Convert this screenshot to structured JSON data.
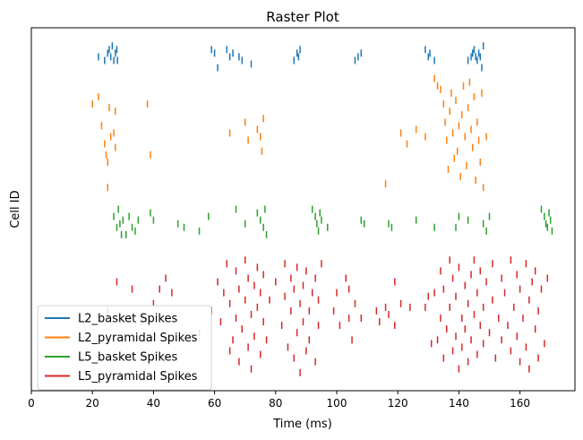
{
  "chart_data": {
    "type": "scatter",
    "title": "Raster Plot",
    "xlabel": "Time (ms)",
    "ylabel": "Cell ID",
    "xlim": [
      0,
      178
    ],
    "xticks": [
      0,
      20,
      40,
      60,
      80,
      100,
      120,
      140,
      160
    ],
    "ylim": [
      0,
      100
    ],
    "y_tick_labels_shown": false,
    "grid": false,
    "legend_position": "lower-left",
    "marker": "short vertical tick",
    "series": [
      {
        "name": "L2_basket Spikes",
        "color": "#1f77b4",
        "spikes": [
          [
            22,
            92
          ],
          [
            24,
            91
          ],
          [
            25,
            93
          ],
          [
            25.5,
            94
          ],
          [
            26,
            92
          ],
          [
            26.5,
            95
          ],
          [
            27,
            91
          ],
          [
            27.5,
            93
          ],
          [
            28,
            94
          ],
          [
            28.2,
            91
          ],
          [
            59,
            94
          ],
          [
            60,
            93
          ],
          [
            61,
            89
          ],
          [
            64,
            94
          ],
          [
            65,
            92
          ],
          [
            66,
            93
          ],
          [
            68,
            92
          ],
          [
            69,
            91
          ],
          [
            72,
            90
          ],
          [
            86,
            91
          ],
          [
            87,
            93
          ],
          [
            87.5,
            92
          ],
          [
            88,
            94
          ],
          [
            106,
            91
          ],
          [
            107,
            92
          ],
          [
            108,
            93
          ],
          [
            129,
            94
          ],
          [
            130,
            92
          ],
          [
            130.5,
            93
          ],
          [
            132,
            91
          ],
          [
            143,
            91
          ],
          [
            144,
            92
          ],
          [
            144.5,
            93
          ],
          [
            145,
            94
          ],
          [
            145.5,
            92
          ],
          [
            146,
            91
          ],
          [
            146.5,
            93
          ],
          [
            147,
            92
          ],
          [
            147.5,
            89
          ],
          [
            148,
            95
          ]
        ]
      },
      {
        "name": "L2_pyramidal Spikes",
        "color": "#ff7f0e",
        "spikes": [
          [
            20,
            79
          ],
          [
            22,
            81
          ],
          [
            23,
            73
          ],
          [
            24,
            68
          ],
          [
            24.5,
            65
          ],
          [
            25,
            63
          ],
          [
            25,
            56
          ],
          [
            25.5,
            78
          ],
          [
            26,
            70
          ],
          [
            27,
            71
          ],
          [
            27.5,
            77
          ],
          [
            27.5,
            67
          ],
          [
            38,
            79
          ],
          [
            39,
            65
          ],
          [
            65,
            71
          ],
          [
            70,
            74
          ],
          [
            71,
            69
          ],
          [
            74,
            72
          ],
          [
            75,
            70
          ],
          [
            75.5,
            66
          ],
          [
            76,
            75
          ],
          [
            116,
            57
          ],
          [
            121,
            71
          ],
          [
            123,
            68
          ],
          [
            126,
            72
          ],
          [
            129,
            70
          ],
          [
            132,
            86
          ],
          [
            133,
            84
          ],
          [
            134,
            83
          ],
          [
            135,
            79
          ],
          [
            135.5,
            74
          ],
          [
            136,
            69
          ],
          [
            136.5,
            61
          ],
          [
            137,
            77
          ],
          [
            137.5,
            82
          ],
          [
            138,
            71
          ],
          [
            138.5,
            64
          ],
          [
            139,
            80
          ],
          [
            139.5,
            66
          ],
          [
            140,
            73
          ],
          [
            140.5,
            59
          ],
          [
            141,
            76
          ],
          [
            141.5,
            84
          ],
          [
            142,
            70
          ],
          [
            142.5,
            62
          ],
          [
            143,
            78
          ],
          [
            143.5,
            85
          ],
          [
            144,
            72
          ],
          [
            144.5,
            67
          ],
          [
            145,
            81
          ],
          [
            145.5,
            58
          ],
          [
            146,
            74
          ],
          [
            146.5,
            69
          ],
          [
            147,
            63
          ],
          [
            147.5,
            82
          ],
          [
            148,
            56
          ],
          [
            149,
            70
          ]
        ]
      },
      {
        "name": "L5_basket Spikes",
        "color": "#2ca02c",
        "spikes": [
          [
            27,
            48
          ],
          [
            28,
            45
          ],
          [
            28.5,
            50
          ],
          [
            29,
            46
          ],
          [
            29.5,
            43
          ],
          [
            30,
            47
          ],
          [
            31,
            43
          ],
          [
            32,
            48
          ],
          [
            33,
            45
          ],
          [
            34,
            44
          ],
          [
            35,
            47
          ],
          [
            39,
            49
          ],
          [
            40,
            47
          ],
          [
            48,
            46
          ],
          [
            50,
            45
          ],
          [
            55,
            44
          ],
          [
            58,
            48
          ],
          [
            67,
            50
          ],
          [
            70,
            46
          ],
          [
            74,
            49
          ],
          [
            75,
            47
          ],
          [
            76,
            45
          ],
          [
            76.5,
            50
          ],
          [
            77,
            43
          ],
          [
            92,
            50
          ],
          [
            93,
            48
          ],
          [
            93.5,
            46
          ],
          [
            94,
            44
          ],
          [
            94.5,
            49
          ],
          [
            95,
            47
          ],
          [
            97,
            45
          ],
          [
            108,
            47
          ],
          [
            109,
            46
          ],
          [
            117,
            46
          ],
          [
            118,
            45
          ],
          [
            126,
            47
          ],
          [
            132,
            45
          ],
          [
            139,
            45
          ],
          [
            140,
            48
          ],
          [
            143,
            47
          ],
          [
            148,
            46
          ],
          [
            149,
            44
          ],
          [
            150,
            48
          ],
          [
            167,
            50
          ],
          [
            168,
            48
          ],
          [
            168.5,
            46
          ],
          [
            169,
            45
          ],
          [
            169.5,
            49
          ],
          [
            170,
            47
          ],
          [
            170.5,
            44
          ]
        ]
      },
      {
        "name": "L5_pyramidal Spikes",
        "color": "#d62728",
        "spikes": [
          [
            25,
            22
          ],
          [
            28,
            30
          ],
          [
            32,
            20
          ],
          [
            33,
            28
          ],
          [
            36,
            19
          ],
          [
            40,
            24
          ],
          [
            42,
            28
          ],
          [
            44,
            31
          ],
          [
            46,
            27
          ],
          [
            55,
            16
          ],
          [
            59,
            22
          ],
          [
            61,
            30
          ],
          [
            62,
            19
          ],
          [
            63,
            27
          ],
          [
            64,
            35
          ],
          [
            65,
            11
          ],
          [
            65,
            24
          ],
          [
            66,
            14
          ],
          [
            67,
            33
          ],
          [
            67,
            20
          ],
          [
            68,
            8
          ],
          [
            68,
            28
          ],
          [
            69,
            17
          ],
          [
            70,
            36
          ],
          [
            70,
            25
          ],
          [
            71,
            12
          ],
          [
            71,
            31
          ],
          [
            72,
            21
          ],
          [
            72,
            6
          ],
          [
            73,
            29
          ],
          [
            73,
            15
          ],
          [
            74,
            34
          ],
          [
            74,
            23
          ],
          [
            75,
            10
          ],
          [
            75,
            27
          ],
          [
            76,
            19
          ],
          [
            76,
            32
          ],
          [
            77,
            14
          ],
          [
            78,
            25
          ],
          [
            80,
            30
          ],
          [
            82,
            18
          ],
          [
            83,
            35
          ],
          [
            83,
            26
          ],
          [
            84,
            12
          ],
          [
            85,
            22
          ],
          [
            85,
            31
          ],
          [
            86,
            9
          ],
          [
            86,
            28
          ],
          [
            87,
            16
          ],
          [
            87,
            34
          ],
          [
            88,
            24
          ],
          [
            88,
            5
          ],
          [
            89,
            19
          ],
          [
            89,
            29
          ],
          [
            90,
            11
          ],
          [
            90,
            33
          ],
          [
            91,
            22
          ],
          [
            91,
            14
          ],
          [
            92,
            27
          ],
          [
            93,
            8
          ],
          [
            93,
            31
          ],
          [
            94,
            18
          ],
          [
            94,
            25
          ],
          [
            95,
            35
          ],
          [
            99,
            22
          ],
          [
            100,
            27
          ],
          [
            101,
            18
          ],
          [
            103,
            31
          ],
          [
            104,
            20
          ],
          [
            104,
            28
          ],
          [
            105,
            14
          ],
          [
            106,
            24
          ],
          [
            108,
            20
          ],
          [
            113,
            22
          ],
          [
            114,
            19
          ],
          [
            116,
            23
          ],
          [
            117,
            21
          ],
          [
            119,
            18
          ],
          [
            119,
            30
          ],
          [
            121,
            24
          ],
          [
            124,
            23
          ],
          [
            129,
            23
          ],
          [
            130,
            26
          ],
          [
            131,
            13
          ],
          [
            132,
            27
          ],
          [
            133,
            14
          ],
          [
            134,
            33
          ],
          [
            134,
            20
          ],
          [
            135,
            9
          ],
          [
            135,
            28
          ],
          [
            136,
            17
          ],
          [
            137,
            36
          ],
          [
            137,
            23
          ],
          [
            138,
            11
          ],
          [
            138,
            31
          ],
          [
            139,
            15
          ],
          [
            139,
            26
          ],
          [
            140,
            6
          ],
          [
            140,
            34
          ],
          [
            141,
            20
          ],
          [
            141,
            12
          ],
          [
            142,
            29
          ],
          [
            142,
            17
          ],
          [
            143,
            8
          ],
          [
            143,
            24
          ],
          [
            144,
            32
          ],
          [
            144,
            14
          ],
          [
            145,
            21
          ],
          [
            145,
            36
          ],
          [
            146,
            10
          ],
          [
            146,
            27
          ],
          [
            147,
            18
          ],
          [
            147,
            33
          ],
          [
            148,
            23
          ],
          [
            148,
            13
          ],
          [
            149,
            30
          ],
          [
            150,
            16
          ],
          [
            151,
            35
          ],
          [
            151,
            25
          ],
          [
            152,
            9
          ],
          [
            153,
            20
          ],
          [
            154,
            31
          ],
          [
            154,
            14
          ],
          [
            155,
            27
          ],
          [
            156,
            18
          ],
          [
            157,
            36
          ],
          [
            157,
            11
          ],
          [
            158,
            23
          ],
          [
            159,
            32
          ],
          [
            159,
            15
          ],
          [
            160,
            8
          ],
          [
            160,
            28
          ],
          [
            161,
            20
          ],
          [
            162,
            35
          ],
          [
            162,
            12
          ],
          [
            163,
            25
          ],
          [
            163,
            6
          ],
          [
            164,
            30
          ],
          [
            165,
            17
          ],
          [
            165,
            33
          ],
          [
            166,
            9
          ],
          [
            166,
            22
          ],
          [
            167,
            28
          ],
          [
            168,
            13
          ],
          [
            169,
            31
          ]
        ]
      }
    ]
  }
}
